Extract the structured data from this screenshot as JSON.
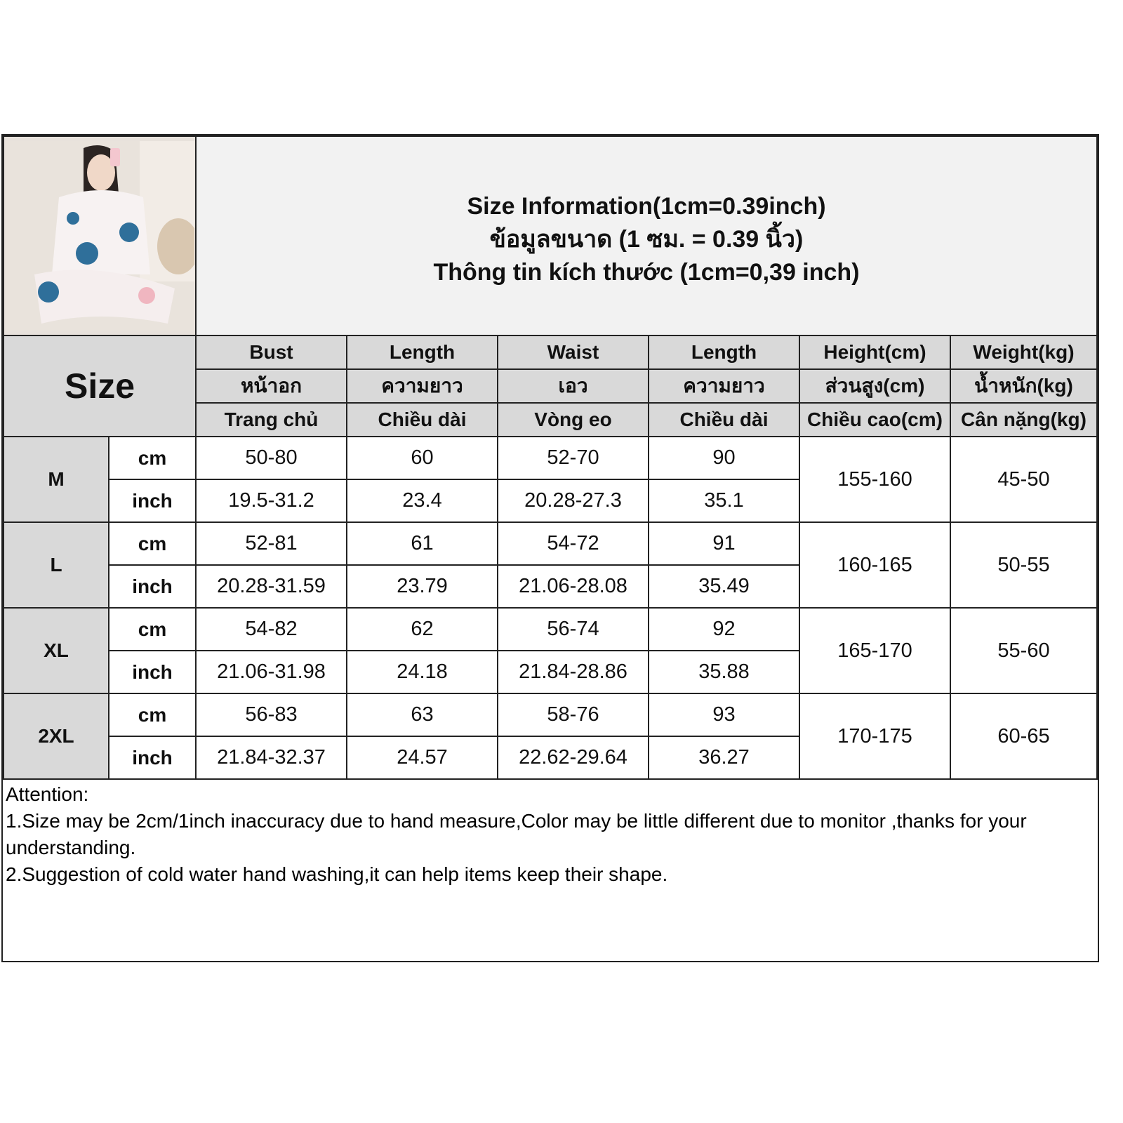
{
  "title": {
    "en": "Size Information(1cm=0.39inch)",
    "th": "ข้อมูลขนาด (1 ซม. = 0.39 นิ้ว)",
    "vi": "Thông tin kích thước (1cm=0,39 inch)"
  },
  "size_label": "Size",
  "columns": [
    {
      "en": "Bust",
      "th": "หน้าอก",
      "vi": "Trang chủ"
    },
    {
      "en": "Length",
      "th": "ความยาว",
      "vi": "Chiều dài"
    },
    {
      "en": "Waist",
      "th": "เอว",
      "vi": "Vòng eo"
    },
    {
      "en": "Length",
      "th": "ความยาว",
      "vi": "Chiều dài"
    },
    {
      "en": "Height(cm)",
      "th": "ส่วนสูง(cm)",
      "vi": "Chiều cao(cm)"
    },
    {
      "en": "Weight(kg)",
      "th": "น้ำหนัก(kg)",
      "vi": "Cân nặng(kg)"
    }
  ],
  "units": {
    "cm": "cm",
    "inch": "inch"
  },
  "rows": [
    {
      "size": "M",
      "cm": [
        "50-80",
        "60",
        "52-70",
        "90"
      ],
      "inch": [
        "19.5-31.2",
        "23.4",
        "20.28-27.3",
        "35.1"
      ],
      "height": "155-160",
      "weight": "45-50"
    },
    {
      "size": "L",
      "cm": [
        "52-81",
        "61",
        "54-72",
        "91"
      ],
      "inch": [
        "20.28-31.59",
        "23.79",
        "21.06-28.08",
        "35.49"
      ],
      "height": "160-165",
      "weight": "50-55"
    },
    {
      "size": "XL",
      "cm": [
        "54-82",
        "62",
        "56-74",
        "92"
      ],
      "inch": [
        "21.06-31.98",
        "24.18",
        "21.84-28.86",
        "35.88"
      ],
      "height": "165-170",
      "weight": "55-60"
    },
    {
      "size": "2XL",
      "cm": [
        "56-83",
        "63",
        "58-76",
        "93"
      ],
      "inch": [
        "21.84-32.37",
        "24.57",
        "22.62-29.64",
        "36.27"
      ],
      "height": "170-175",
      "weight": "60-65"
    }
  ],
  "notes": {
    "heading": "Attention:",
    "items": [
      "1.Size may be 2cm/1inch inaccuracy due to hand measure,Color may be little different due to monitor ,thanks for your understanding.",
      "2.Suggestion of cold water hand washing,it can help items keep their shape."
    ]
  },
  "colors": {
    "header_bg": "#d9d9d9",
    "title_bg": "#f2f2f2",
    "border": "#222222"
  }
}
